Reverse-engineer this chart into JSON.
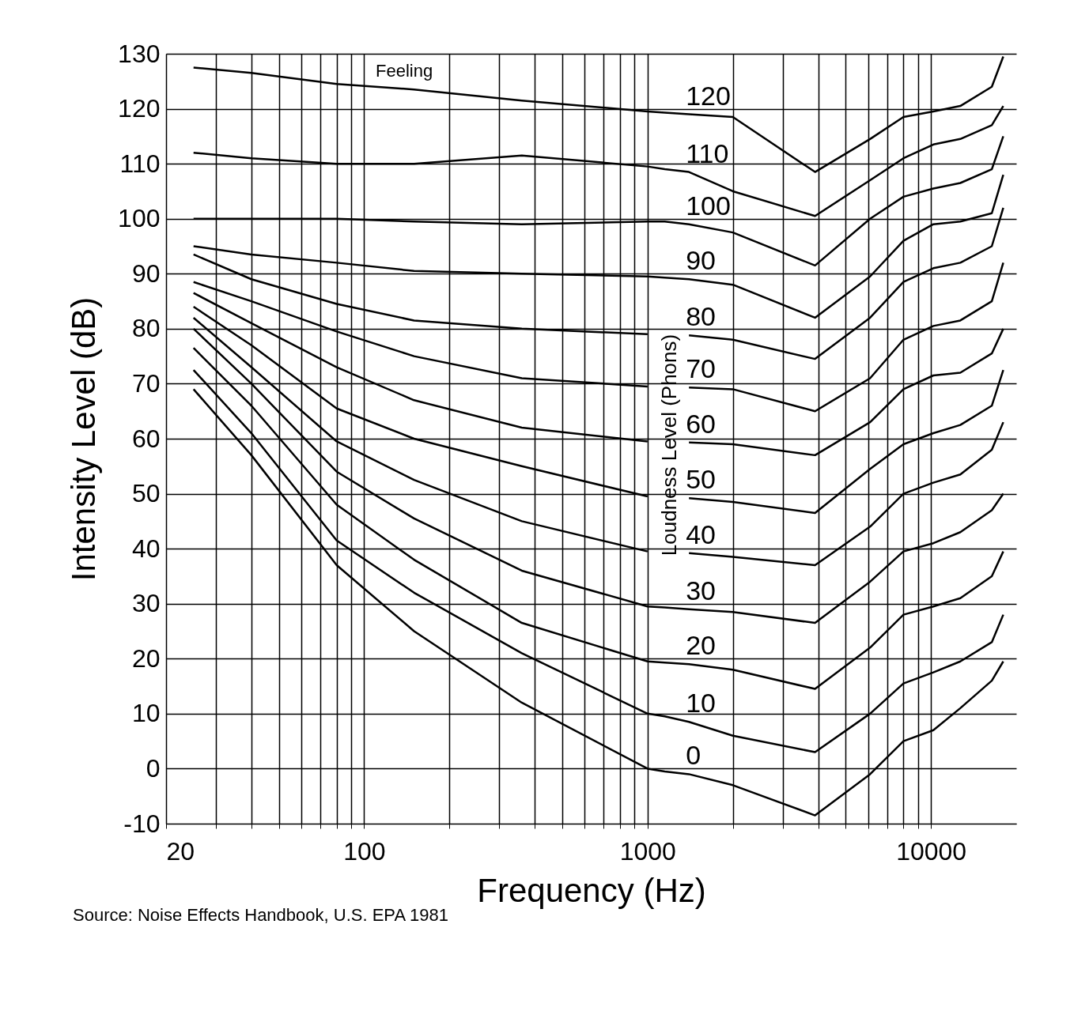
{
  "chart_data": {
    "type": "line",
    "xlabel": "Frequency (Hz)",
    "ylabel": "Intensity Level (dB)",
    "log": "x",
    "grid": true,
    "marker": "none",
    "line_style": "solid",
    "xlim": [
      20,
      20000
    ],
    "ylim": [
      -10,
      130
    ],
    "xticks": [
      20,
      {
        "value": 30,
        "label": null
      },
      {
        "value": 40,
        "label": null
      },
      {
        "value": 50,
        "label": null
      },
      {
        "value": 60,
        "label": null
      },
      {
        "value": 70,
        "label": null
      },
      {
        "value": 80,
        "label": null
      },
      {
        "value": 90,
        "label": null
      },
      100,
      {
        "value": 200,
        "label": null
      },
      {
        "value": 300,
        "label": null
      },
      {
        "value": 400,
        "label": null
      },
      {
        "value": 500,
        "label": null
      },
      {
        "value": 600,
        "label": null
      },
      {
        "value": 700,
        "label": null
      },
      {
        "value": 800,
        "label": null
      },
      {
        "value": 900,
        "label": null
      },
      1000,
      {
        "value": 2000,
        "label": null
      },
      {
        "value": 3000,
        "label": null
      },
      {
        "value": 4000,
        "label": null
      },
      {
        "value": 5000,
        "label": null
      },
      {
        "value": 6000,
        "label": null
      },
      {
        "value": 7000,
        "label": null
      },
      {
        "value": 8000,
        "label": null
      },
      {
        "value": 9000,
        "label": null
      },
      10000
    ],
    "yticks": [
      -10,
      0,
      10,
      20,
      30,
      40,
      50,
      60,
      70,
      80,
      90,
      100,
      110,
      120,
      130
    ],
    "x": [
      25,
      40,
      80,
      150,
      360,
      1000,
      1150,
      1400,
      2000,
      3900,
      6100,
      8000,
      10200,
      12700,
      16400,
      18000
    ],
    "series": [
      {
        "name": "120",
        "color": "#000000",
        "values": [
          127.5,
          126.5,
          124.5,
          123.5,
          121.5,
          119.5,
          119.3,
          119,
          118.5,
          108.5,
          114.5,
          118.5,
          119.5,
          120.5,
          124,
          129.5
        ]
      },
      {
        "name": "110",
        "color": "#000000",
        "values": [
          112,
          111,
          110,
          110,
          111.5,
          109.5,
          109,
          108.5,
          105,
          100.5,
          107,
          111,
          113.5,
          114.5,
          117,
          120.5
        ]
      },
      {
        "name": "100",
        "color": "#000000",
        "values": [
          100,
          100,
          100,
          99.5,
          99,
          99.5,
          99.5,
          99,
          97.5,
          91.5,
          100,
          104,
          105.5,
          106.5,
          109,
          115
        ]
      },
      {
        "name": "90",
        "color": "#000000",
        "values": [
          95,
          93.5,
          92,
          90.5,
          90,
          89.5,
          89.3,
          89,
          88,
          82,
          89.5,
          96,
          99,
          99.5,
          101,
          108
        ]
      },
      {
        "name": "80",
        "color": "#000000",
        "values": [
          93.5,
          89,
          84.5,
          81.5,
          80,
          79,
          null,
          78.8,
          78,
          74.5,
          82,
          88.5,
          91,
          92,
          95,
          102
        ]
      },
      {
        "name": "70",
        "color": "#000000",
        "values": [
          88.5,
          85,
          79.5,
          75,
          71,
          69.5,
          null,
          69.3,
          69,
          65,
          71,
          78,
          80.5,
          81.5,
          85,
          92
        ]
      },
      {
        "name": "60",
        "color": "#000000",
        "values": [
          86.5,
          81,
          73,
          67,
          62,
          59.5,
          null,
          59.3,
          59,
          57,
          63,
          69,
          71.5,
          72,
          75.5,
          80
        ]
      },
      {
        "name": "50",
        "color": "#000000",
        "values": [
          84,
          77,
          65.5,
          60,
          55,
          49.5,
          null,
          49.2,
          48.5,
          46.5,
          54.5,
          59,
          61,
          62.5,
          66,
          72.5
        ]
      },
      {
        "name": "40",
        "color": "#000000",
        "values": [
          82,
          73,
          59.5,
          52.5,
          45,
          39.5,
          null,
          39.2,
          38.5,
          37,
          44,
          50,
          52,
          53.5,
          58,
          63
        ]
      },
      {
        "name": "30",
        "color": "#000000",
        "values": [
          80,
          70,
          54,
          45.5,
          36,
          29.5,
          29.3,
          29,
          28.5,
          26.5,
          34,
          39.5,
          41,
          43,
          47,
          50
        ]
      },
      {
        "name": "20",
        "color": "#000000",
        "values": [
          76.5,
          66,
          48,
          38,
          26.5,
          19.5,
          19.3,
          19,
          18,
          14.5,
          22,
          28,
          29.5,
          31,
          35,
          39.5
        ]
      },
      {
        "name": "10",
        "color": "#000000",
        "values": [
          72.5,
          61,
          41.5,
          32,
          21,
          10,
          9.5,
          8.5,
          6,
          3,
          10,
          15.5,
          17.5,
          19.5,
          23,
          28
        ]
      },
      {
        "name": "0",
        "color": "#000000",
        "values": [
          69,
          57,
          37,
          25,
          12,
          0,
          -0.5,
          -1,
          -3,
          -8.5,
          -1,
          5,
          7,
          11,
          16,
          19.5
        ]
      }
    ],
    "annotations": [
      "Feeling",
      "Loudness Level (Phons)",
      "Source: Noise Effects Handbook, U.S. EPA 1981"
    ]
  }
}
